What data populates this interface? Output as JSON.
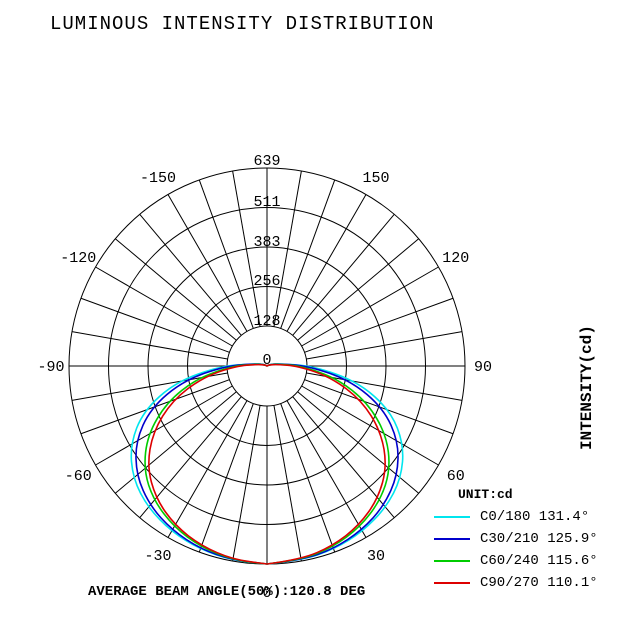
{
  "title": "LUMINOUS INTENSITY DISTRIBUTION",
  "ylabel": "INTENSITY(cd)",
  "unit_label": "UNIT:cd",
  "beam_angle_text": "AVERAGE BEAM ANGLE(50%):120.8 DEG",
  "chart_data": {
    "type": "polar",
    "radial_max": 639,
    "radial_ticks": [
      "0",
      "128",
      "256",
      "383",
      "511",
      "639"
    ],
    "angle_labels": [
      "0",
      "30",
      "60",
      "90",
      "120",
      "150",
      "-150",
      "-120",
      "-90",
      "-60",
      "-30"
    ],
    "top_label": "639",
    "angle_step_deg": 10,
    "grid": true,
    "series": [
      {
        "name": "C0/180 131.4°",
        "color": "#00e5ee",
        "values": [
          639,
          637,
          630,
          617,
          597,
          565,
          510,
          425,
          300,
          150,
          40,
          15,
          5,
          0,
          0,
          0,
          0,
          0,
          0
        ]
      },
      {
        "name": "C30/210 125.9°",
        "color": "#0000cc",
        "values": [
          639,
          636,
          628,
          612,
          588,
          550,
          490,
          400,
          275,
          135,
          40,
          15,
          5,
          0,
          0,
          0,
          0,
          0,
          0
        ]
      },
      {
        "name": "C60/240 115.6°",
        "color": "#00cc00",
        "values": [
          639,
          635,
          622,
          600,
          568,
          520,
          445,
          345,
          230,
          110,
          35,
          12,
          5,
          0,
          0,
          0,
          0,
          0,
          0
        ]
      },
      {
        "name": "C90/270 110.1°",
        "color": "#dd0000",
        "values": [
          639,
          634,
          618,
          594,
          558,
          505,
          425,
          325,
          210,
          100,
          30,
          10,
          5,
          0,
          0,
          0,
          0,
          0,
          0
        ]
      }
    ]
  }
}
